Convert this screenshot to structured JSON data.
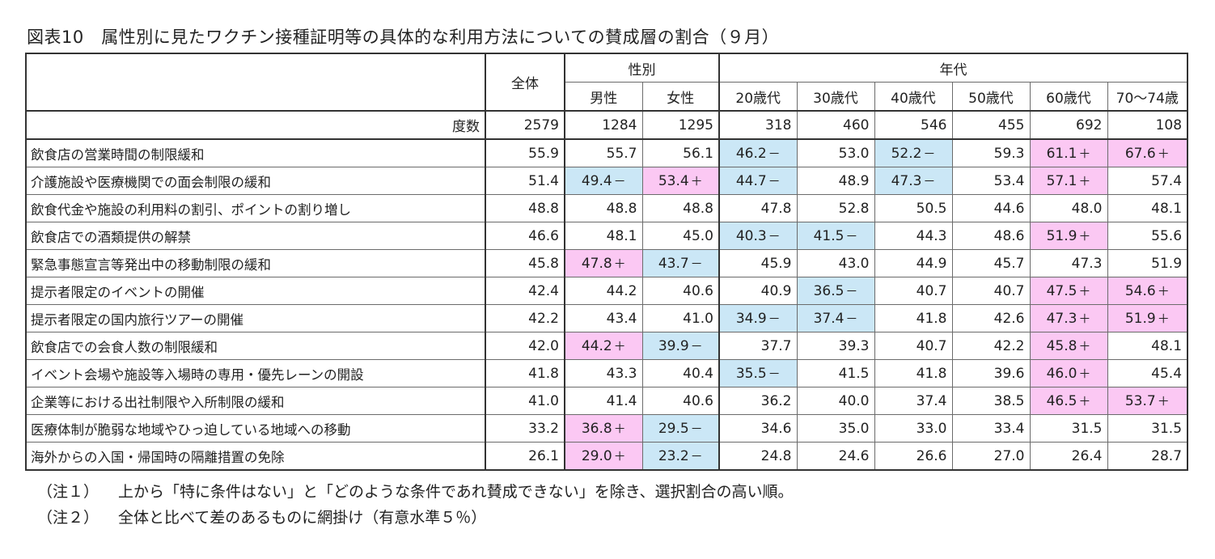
{
  "title": "図表10　属性別に見たワクチン接種証明等の具体的な利用方法についての賛成層の割合（９月）",
  "header": {
    "overall": "全体",
    "gender_group": "性別",
    "age_group": "年代",
    "columns": [
      "男性",
      "女性",
      "20歳代",
      "30歳代",
      "40歳代",
      "50歳代",
      "60歳代",
      "70～74歳"
    ]
  },
  "count_row": {
    "label": "度数",
    "values": [
      "2579",
      "1284",
      "1295",
      "318",
      "460",
      "546",
      "455",
      "692",
      "108"
    ]
  },
  "rows": [
    {
      "label": "飲食店の営業時間の制限緩和",
      "cells": [
        {
          "v": "55.9",
          "m": ""
        },
        {
          "v": "55.7",
          "m": ""
        },
        {
          "v": "56.1",
          "m": ""
        },
        {
          "v": "46.2",
          "m": "－"
        },
        {
          "v": "53.0",
          "m": ""
        },
        {
          "v": "52.2",
          "m": "－"
        },
        {
          "v": "59.3",
          "m": ""
        },
        {
          "v": "61.1",
          "m": "＋"
        },
        {
          "v": "67.6",
          "m": "＋"
        }
      ]
    },
    {
      "label": "介護施設や医療機関での面会制限の緩和",
      "cells": [
        {
          "v": "51.4",
          "m": ""
        },
        {
          "v": "49.4",
          "m": "－"
        },
        {
          "v": "53.4",
          "m": "＋"
        },
        {
          "v": "44.7",
          "m": "－"
        },
        {
          "v": "48.9",
          "m": ""
        },
        {
          "v": "47.3",
          "m": "－"
        },
        {
          "v": "53.4",
          "m": ""
        },
        {
          "v": "57.1",
          "m": "＋"
        },
        {
          "v": "57.4",
          "m": ""
        }
      ]
    },
    {
      "label": "飲食代金や施設の利用料の割引、ポイントの割り増し",
      "cells": [
        {
          "v": "48.8",
          "m": ""
        },
        {
          "v": "48.8",
          "m": ""
        },
        {
          "v": "48.8",
          "m": ""
        },
        {
          "v": "47.8",
          "m": ""
        },
        {
          "v": "52.8",
          "m": ""
        },
        {
          "v": "50.5",
          "m": ""
        },
        {
          "v": "44.6",
          "m": ""
        },
        {
          "v": "48.0",
          "m": ""
        },
        {
          "v": "48.1",
          "m": ""
        }
      ]
    },
    {
      "label": "飲食店での酒類提供の解禁",
      "cells": [
        {
          "v": "46.6",
          "m": ""
        },
        {
          "v": "48.1",
          "m": ""
        },
        {
          "v": "45.0",
          "m": ""
        },
        {
          "v": "40.3",
          "m": "－"
        },
        {
          "v": "41.5",
          "m": "－"
        },
        {
          "v": "44.3",
          "m": ""
        },
        {
          "v": "48.6",
          "m": ""
        },
        {
          "v": "51.9",
          "m": "＋"
        },
        {
          "v": "55.6",
          "m": ""
        }
      ]
    },
    {
      "label": "緊急事態宣言等発出中の移動制限の緩和",
      "cells": [
        {
          "v": "45.8",
          "m": ""
        },
        {
          "v": "47.8",
          "m": "＋"
        },
        {
          "v": "43.7",
          "m": "－"
        },
        {
          "v": "45.9",
          "m": ""
        },
        {
          "v": "43.0",
          "m": ""
        },
        {
          "v": "44.9",
          "m": ""
        },
        {
          "v": "45.7",
          "m": ""
        },
        {
          "v": "47.3",
          "m": ""
        },
        {
          "v": "51.9",
          "m": ""
        }
      ]
    },
    {
      "label": "提示者限定のイベントの開催",
      "cells": [
        {
          "v": "42.4",
          "m": ""
        },
        {
          "v": "44.2",
          "m": ""
        },
        {
          "v": "40.6",
          "m": ""
        },
        {
          "v": "40.9",
          "m": ""
        },
        {
          "v": "36.5",
          "m": "－"
        },
        {
          "v": "40.7",
          "m": ""
        },
        {
          "v": "40.7",
          "m": ""
        },
        {
          "v": "47.5",
          "m": "＋"
        },
        {
          "v": "54.6",
          "m": "＋"
        }
      ]
    },
    {
      "label": "提示者限定の国内旅行ツアーの開催",
      "cells": [
        {
          "v": "42.2",
          "m": ""
        },
        {
          "v": "43.4",
          "m": ""
        },
        {
          "v": "41.0",
          "m": ""
        },
        {
          "v": "34.9",
          "m": "－"
        },
        {
          "v": "37.4",
          "m": "－"
        },
        {
          "v": "41.8",
          "m": ""
        },
        {
          "v": "42.6",
          "m": ""
        },
        {
          "v": "47.3",
          "m": "＋"
        },
        {
          "v": "51.9",
          "m": "＋"
        }
      ]
    },
    {
      "label": "飲食店での会食人数の制限緩和",
      "cells": [
        {
          "v": "42.0",
          "m": ""
        },
        {
          "v": "44.2",
          "m": "＋"
        },
        {
          "v": "39.9",
          "m": "－"
        },
        {
          "v": "37.7",
          "m": ""
        },
        {
          "v": "39.3",
          "m": ""
        },
        {
          "v": "40.7",
          "m": ""
        },
        {
          "v": "42.2",
          "m": ""
        },
        {
          "v": "45.8",
          "m": "＋"
        },
        {
          "v": "48.1",
          "m": ""
        }
      ]
    },
    {
      "label": "イベント会場や施設等入場時の専用・優先レーンの開設",
      "cells": [
        {
          "v": "41.8",
          "m": ""
        },
        {
          "v": "43.3",
          "m": ""
        },
        {
          "v": "40.4",
          "m": ""
        },
        {
          "v": "35.5",
          "m": "－"
        },
        {
          "v": "41.5",
          "m": ""
        },
        {
          "v": "41.8",
          "m": ""
        },
        {
          "v": "39.6",
          "m": ""
        },
        {
          "v": "46.0",
          "m": "＋"
        },
        {
          "v": "45.4",
          "m": ""
        }
      ]
    },
    {
      "label": "企業等における出社制限や入所制限の緩和",
      "cells": [
        {
          "v": "41.0",
          "m": ""
        },
        {
          "v": "41.4",
          "m": ""
        },
        {
          "v": "40.6",
          "m": ""
        },
        {
          "v": "36.2",
          "m": ""
        },
        {
          "v": "40.0",
          "m": ""
        },
        {
          "v": "37.4",
          "m": ""
        },
        {
          "v": "38.5",
          "m": ""
        },
        {
          "v": "46.5",
          "m": "＋"
        },
        {
          "v": "53.7",
          "m": "＋"
        }
      ]
    },
    {
      "label": "医療体制が脆弱な地域やひっ迫している地域への移動",
      "cells": [
        {
          "v": "33.2",
          "m": ""
        },
        {
          "v": "36.8",
          "m": "＋"
        },
        {
          "v": "29.5",
          "m": "－"
        },
        {
          "v": "34.6",
          "m": ""
        },
        {
          "v": "35.0",
          "m": ""
        },
        {
          "v": "33.0",
          "m": ""
        },
        {
          "v": "33.4",
          "m": ""
        },
        {
          "v": "31.5",
          "m": ""
        },
        {
          "v": "31.5",
          "m": ""
        }
      ]
    },
    {
      "label": "海外からの入国・帰国時の隔離措置の免除",
      "cells": [
        {
          "v": "26.1",
          "m": ""
        },
        {
          "v": "29.0",
          "m": "＋"
        },
        {
          "v": "23.2",
          "m": "－"
        },
        {
          "v": "24.8",
          "m": ""
        },
        {
          "v": "24.6",
          "m": ""
        },
        {
          "v": "26.6",
          "m": ""
        },
        {
          "v": "27.0",
          "m": ""
        },
        {
          "v": "26.4",
          "m": ""
        },
        {
          "v": "28.7",
          "m": ""
        }
      ]
    }
  ],
  "colors": {
    "plus_highlight": "#fbc8f3",
    "minus_highlight": "#cbe7f6"
  },
  "notes": [
    {
      "tag": "（注１）",
      "text": "上から「特に条件はない」と「どのような条件であれ賛成できない」を除き、選択割合の高い順。"
    },
    {
      "tag": "（注２）",
      "text": "全体と比べて差のあるものに網掛け（有意水準５％）"
    }
  ]
}
